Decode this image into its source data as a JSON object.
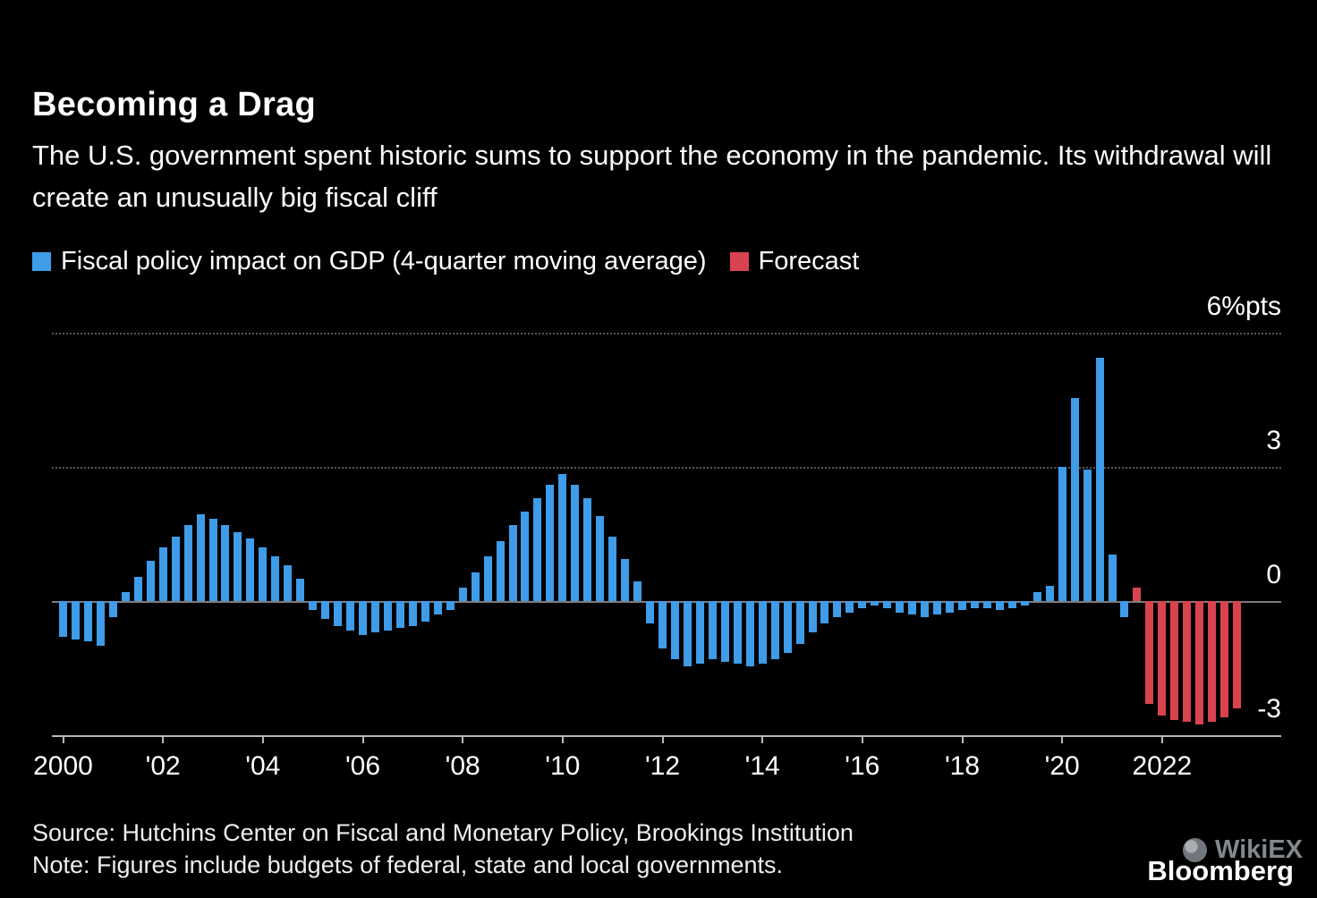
{
  "header": {
    "title": "Becoming a Drag",
    "subtitle": "The U.S. government spent historic sums to support the economy in the pandemic. Its withdrawal will create an unusually big fiscal cliff"
  },
  "legend": {
    "actual": "Fiscal policy impact on GDP (4-quarter moving average)",
    "forecast": "Forecast"
  },
  "chart_data": {
    "type": "bar",
    "title": "Becoming a Drag",
    "xlabel": "",
    "ylabel": "%pts",
    "ylim": [
      -3.2,
      6.7
    ],
    "grid": "dotted horizontal lines at 3 and 6, solid zero line, solid axis at -3",
    "legend_position": "top-left",
    "quarters_total": 96,
    "x_start_quarter": "2000Q1",
    "x_tick_every_quarters": 8,
    "x_tick_labels": [
      "2000",
      "'02",
      "'04",
      "'06",
      "'08",
      "'10",
      "'12",
      "'14",
      "'16",
      "'18",
      "'20",
      "2022"
    ],
    "yticks": [
      {
        "value": 6,
        "label": "6%pts"
      },
      {
        "value": 3,
        "label": "3"
      },
      {
        "value": 0,
        "label": "0"
      },
      {
        "value": -3,
        "label": "-3"
      }
    ],
    "series": [
      {
        "name": "Fiscal policy impact on GDP (4-quarter moving average)",
        "color": "#3E9CE9",
        "start_quarter": "2000Q1",
        "start_index": 0,
        "values": [
          -0.8,
          -0.85,
          -0.9,
          -1.0,
          -0.35,
          0.2,
          0.55,
          0.9,
          1.2,
          1.45,
          1.7,
          1.95,
          1.85,
          1.7,
          1.55,
          1.4,
          1.2,
          1.0,
          0.8,
          0.5,
          -0.2,
          -0.4,
          -0.55,
          -0.65,
          -0.75,
          -0.7,
          -0.65,
          -0.6,
          -0.55,
          -0.45,
          -0.3,
          -0.2,
          0.3,
          0.65,
          1.0,
          1.35,
          1.7,
          2.0,
          2.3,
          2.6,
          2.85,
          2.6,
          2.3,
          1.9,
          1.45,
          0.95,
          0.45,
          -0.5,
          -1.05,
          -1.3,
          -1.45,
          -1.4,
          -1.3,
          -1.35,
          -1.4,
          -1.45,
          -1.4,
          -1.3,
          -1.15,
          -0.95,
          -0.7,
          -0.5,
          -0.35,
          -0.25,
          -0.15,
          -0.1,
          -0.15,
          -0.25,
          -0.3,
          -0.35,
          -0.3,
          -0.25,
          -0.2,
          -0.15,
          -0.15,
          -0.2,
          -0.15,
          -0.1,
          0.2,
          0.35,
          3.0,
          4.55,
          2.95,
          5.45,
          1.05,
          -0.35
        ]
      },
      {
        "name": "Forecast",
        "color": "#D9434F",
        "start_quarter": "2021Q3",
        "start_index": 86,
        "values": [
          0.3,
          -2.3,
          -2.55,
          -2.65,
          -2.7,
          -2.75,
          -2.7,
          -2.6,
          -2.4
        ]
      }
    ]
  },
  "footer": {
    "source": "Source: Hutchins Center on Fiscal and Monetary Policy, Brookings Institution",
    "note": "Note: Figures include budgets of federal, state and local governments.",
    "brand": "Bloomberg",
    "watermark": "WikiEX"
  }
}
